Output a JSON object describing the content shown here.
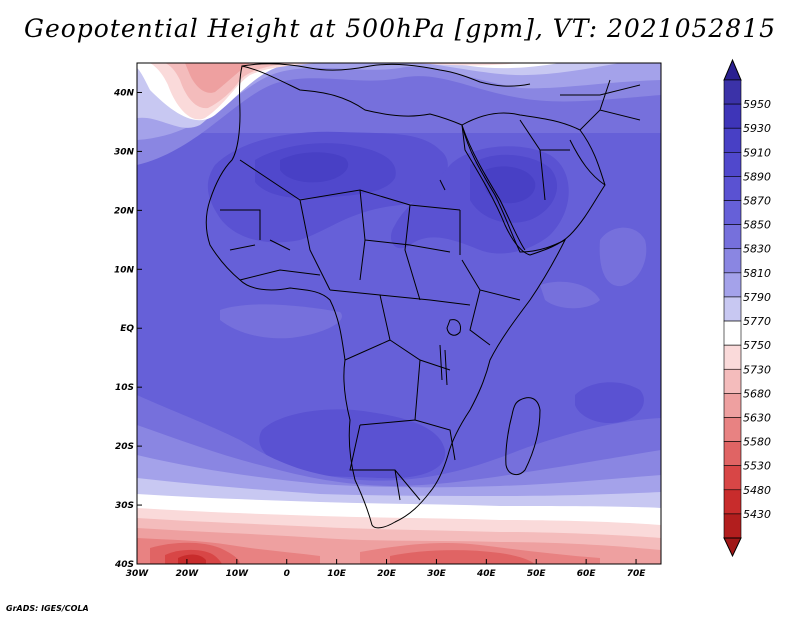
{
  "title": "Geopotential Height at 500hPa [gpm], VT: 2021052815",
  "credit": "GrADS: IGES/COLA",
  "map": {
    "lon_range": [
      -30,
      75
    ],
    "lat_range": [
      -40,
      45
    ],
    "x_ticks": [
      {
        "value": -30,
        "label": "30W"
      },
      {
        "value": -20,
        "label": "20W"
      },
      {
        "value": -10,
        "label": "10W"
      },
      {
        "value": 0,
        "label": "0"
      },
      {
        "value": 10,
        "label": "10E"
      },
      {
        "value": 20,
        "label": "20E"
      },
      {
        "value": 30,
        "label": "30E"
      },
      {
        "value": 40,
        "label": "40E"
      },
      {
        "value": 50,
        "label": "50E"
      },
      {
        "value": 60,
        "label": "60E"
      },
      {
        "value": 70,
        "label": "70E"
      }
    ],
    "y_ticks": [
      {
        "value": 40,
        "label": "40N"
      },
      {
        "value": 30,
        "label": "30N"
      },
      {
        "value": 20,
        "label": "20N"
      },
      {
        "value": 10,
        "label": "10N"
      },
      {
        "value": 0,
        "label": "EQ"
      },
      {
        "value": -10,
        "label": "10S"
      },
      {
        "value": -20,
        "label": "20S"
      },
      {
        "value": -30,
        "label": "30S"
      },
      {
        "value": -40,
        "label": "40S"
      }
    ]
  },
  "colorbar": {
    "levels": [
      "5950",
      "5930",
      "5910",
      "5890",
      "5870",
      "5850",
      "5830",
      "5810",
      "5790",
      "5770",
      "5750",
      "5730",
      "5680",
      "5630",
      "5580",
      "5530",
      "5480",
      "5430"
    ],
    "colors": [
      "#3b32a8",
      "#3e35b8",
      "#4840c5",
      "#5048cc",
      "#5a52d2",
      "#6660d8",
      "#7670dc",
      "#8a86e2",
      "#a4a2ea",
      "#c8c8f2",
      "#ffffff",
      "#fadada",
      "#f4bcbc",
      "#eea0a0",
      "#e88282",
      "#e06464",
      "#d84646",
      "#c82c2c",
      "#b21e1e"
    ],
    "top_color": "#2a2090",
    "bottom_color": "#a01818"
  }
}
